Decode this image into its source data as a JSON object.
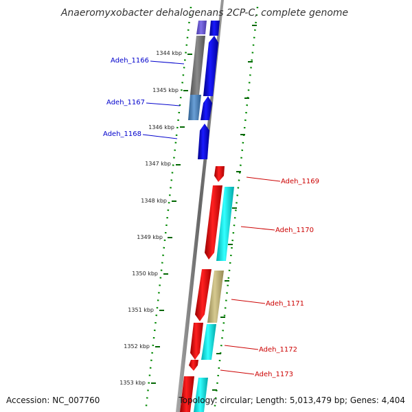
{
  "title": "Anaeromyxobacter dehalogenans 2CP-C, complete genome",
  "accession": "Accession: NC_007760",
  "topology": "Topology: circular; Length: 5,013,479 bp; Genes: 4,404",
  "ticks": [
    "1344 kbp",
    "1345 kbp",
    "1346 kbp",
    "1347 kbp",
    "1348 kbp",
    "1349 kbp",
    "1350 kbp",
    "1351 kbp",
    "1352 kbp",
    "1353 kbp"
  ],
  "genes": [
    {
      "id": "Adeh_1166",
      "label": "Adeh_1166",
      "strand": "minus",
      "color": "#0000cc"
    },
    {
      "id": "Adeh_1167",
      "label": "Adeh_1167",
      "strand": "minus",
      "color": "#0000cc"
    },
    {
      "id": "Adeh_1168",
      "label": "Adeh_1168",
      "strand": "minus",
      "color": "#0000cc"
    },
    {
      "id": "Adeh_1169",
      "label": "Adeh_1169",
      "strand": "plus",
      "color": "#cc0000"
    },
    {
      "id": "Adeh_1170",
      "label": "Adeh_1170",
      "strand": "plus",
      "color": "#cc0000"
    },
    {
      "id": "Adeh_1171",
      "label": "Adeh_1171",
      "strand": "plus",
      "color": "#cc0000"
    },
    {
      "id": "Adeh_1172",
      "label": "Adeh_1172",
      "strand": "plus",
      "color": "#cc0000"
    },
    {
      "id": "Adeh_1173",
      "label": "Adeh_1173",
      "strand": "plus",
      "color": "#cc0000"
    }
  ],
  "colors": {
    "backbone": "#888888",
    "tick": "#006600",
    "minus_gene": "#0000ee",
    "plus_gene": "#ee0000",
    "cog_cyan": "#00e5e5",
    "cog_gray": "#777777",
    "cog_steelblue": "#4a86c5",
    "cog_violet": "#6b5bd6",
    "cog_khaki": "#bdb07a"
  }
}
